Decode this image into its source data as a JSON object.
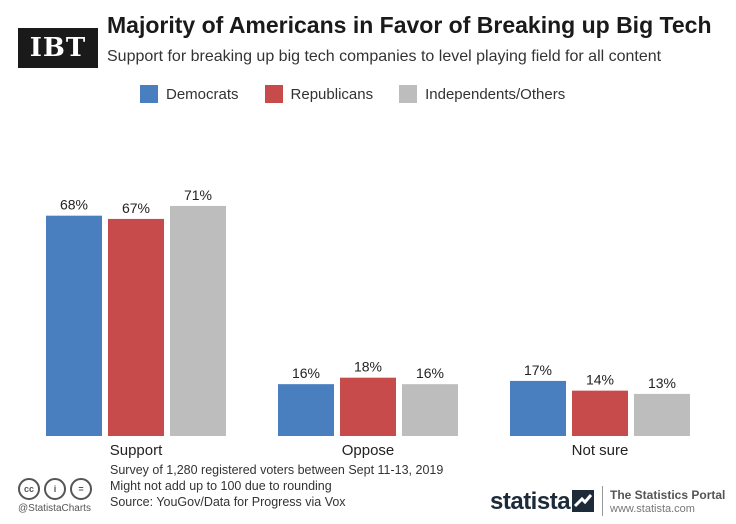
{
  "logo": {
    "text": "IBT"
  },
  "chart_data": {
    "type": "bar",
    "title": "Majority of Americans in Favor of Breaking up Big Tech",
    "subtitle": "Support for breaking up big tech companies to level playing field for all content",
    "categories": [
      "Support",
      "Oppose",
      "Not sure"
    ],
    "series": [
      {
        "name": "Democrats",
        "color": "#4a7fbf",
        "values": [
          68,
          16,
          17
        ]
      },
      {
        "name": "Republicans",
        "color": "#c84b4b",
        "values": [
          67,
          18,
          14
        ]
      },
      {
        "name": "Independents/Others",
        "color": "#bdbdbd",
        "values": [
          71,
          16,
          13
        ]
      }
    ],
    "value_suffix": "%",
    "ylim": [
      0,
      100
    ],
    "xlabel": "",
    "ylabel": ""
  },
  "footnotes": {
    "line1": "Survey of 1,280 registered voters between Sept 11-13, 2019",
    "line2": "Might not add up to 100 due to rounding",
    "line3": "Source: YouGov/Data for Progress via Vox"
  },
  "branding": {
    "cc_icons": [
      "cc",
      "i",
      "="
    ],
    "handle": "@StatistaCharts",
    "statista": "statista",
    "portal_name": "The Statistics Portal",
    "portal_url": "www.statista.com"
  }
}
